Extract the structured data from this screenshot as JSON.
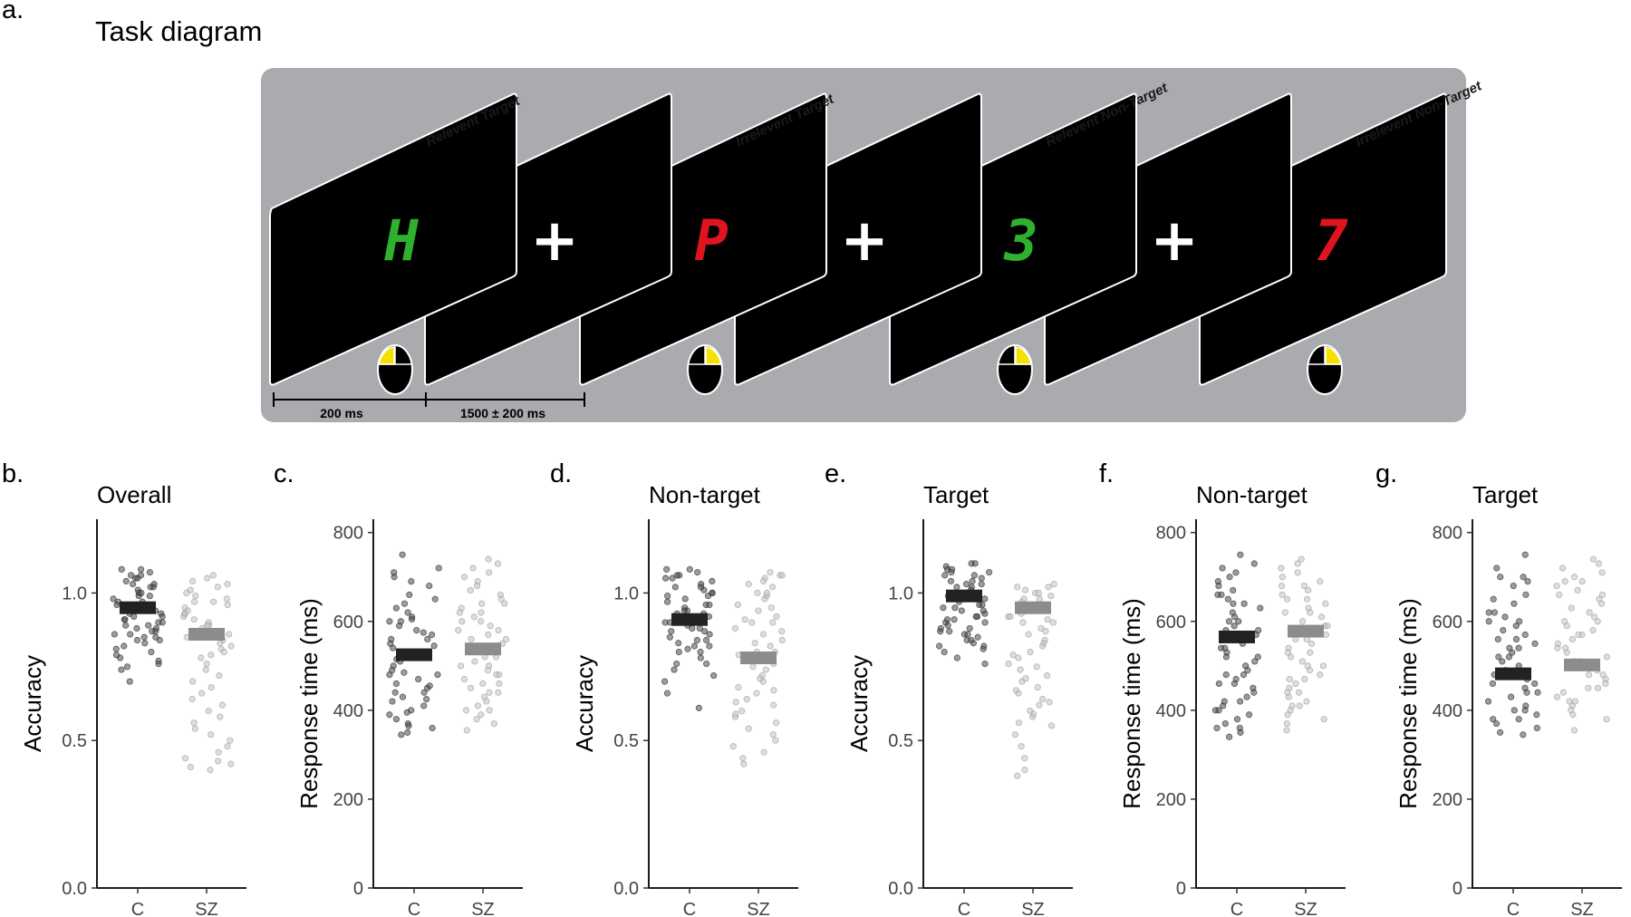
{
  "figure": {
    "panel_a_letter": "a.",
    "panel_a_title": "Task diagram",
    "screens": [
      {
        "kind": "stimulus",
        "label": "Relevent Target",
        "glyph": "H",
        "glyph_color": "#2fb12f",
        "mouse": "left"
      },
      {
        "kind": "fixation",
        "label": "",
        "glyph": "+",
        "glyph_color": "#ffffff",
        "mouse": ""
      },
      {
        "kind": "stimulus",
        "label": "Irrelevent Target",
        "glyph": "P",
        "glyph_color": "#e0141e",
        "mouse": "right"
      },
      {
        "kind": "fixation",
        "label": "",
        "glyph": "+",
        "glyph_color": "#ffffff",
        "mouse": ""
      },
      {
        "kind": "stimulus",
        "label": "Relevent Non-Target",
        "glyph": "3",
        "glyph_color": "#2fb12f",
        "mouse": "right"
      },
      {
        "kind": "fixation",
        "label": "",
        "glyph": "+",
        "glyph_color": "#ffffff",
        "mouse": ""
      },
      {
        "kind": "stimulus",
        "label": "Irrelevent Non-Target",
        "glyph": "7",
        "glyph_color": "#e0141e",
        "mouse": "right"
      }
    ],
    "timing": {
      "stim_label": "200 ms",
      "isi_label": "1500 ± 200 ms"
    },
    "colors": {
      "panel_bg": "#a9abae",
      "screen": "#000000",
      "mouse_button": "#f5e100",
      "control": "#222222",
      "patient": "#8c8c8c",
      "control_points": "#4a4a4a",
      "patient_points": "#bdbdbd"
    }
  },
  "chart_data": [
    {
      "panel": "b.",
      "title": "Overall",
      "type": "scatter",
      "xlabel": "",
      "ylabel": "Accuracy",
      "categories": [
        "C",
        "SZ"
      ],
      "ylim": [
        0.0,
        1.25
      ],
      "yticks": [
        "0.0",
        "0.5",
        "1.0"
      ],
      "ytick_values": [
        0.0,
        0.5,
        1.0
      ],
      "means": [
        0.95,
        0.86
      ],
      "series": [
        {
          "name": "C",
          "values": [
            1.08,
            1.07,
            1.06,
            1.05,
            1.04,
            1.03,
            1.02,
            1.01,
            1.0,
            0.99,
            0.98,
            0.97,
            0.96,
            0.95,
            0.94,
            0.93,
            0.92,
            0.91,
            0.9,
            0.89,
            0.88,
            0.87,
            0.86,
            0.85,
            0.84,
            0.82,
            0.8,
            0.78,
            0.76,
            0.74,
            0.7,
            1.08,
            1.06,
            1.03,
            1.0,
            0.97,
            0.95,
            0.93,
            0.91,
            0.89,
            0.87,
            0.85,
            0.83,
            0.79,
            1.05,
            1.02,
            0.99,
            0.96,
            0.94,
            0.92,
            0.9,
            0.88,
            0.86,
            0.84,
            0.81,
            0.77,
            0.75
          ]
        },
        {
          "name": "SZ",
          "values": [
            1.06,
            1.05,
            1.03,
            1.02,
            1.0,
            0.99,
            0.98,
            0.97,
            0.96,
            0.95,
            0.94,
            0.93,
            0.92,
            0.91,
            0.9,
            0.89,
            0.88,
            0.87,
            0.86,
            0.85,
            0.84,
            0.83,
            0.82,
            0.81,
            0.8,
            0.79,
            0.78,
            0.76,
            0.74,
            0.72,
            0.7,
            0.68,
            0.66,
            0.64,
            0.62,
            0.6,
            0.58,
            0.56,
            0.54,
            0.52,
            0.5,
            0.48,
            0.46,
            0.44,
            0.42,
            0.4,
            0.41,
            0.43,
            1.04,
            1.01,
            0.97,
            0.93,
            0.89,
            0.85
          ]
        }
      ]
    },
    {
      "panel": "c.",
      "title": "",
      "type": "scatter",
      "xlabel": "",
      "ylabel": "Response time (ms)",
      "categories": [
        "C",
        "SZ"
      ],
      "ylim": [
        0,
        830
      ],
      "yticks": [
        "0",
        "200",
        "400",
        "600",
        "800"
      ],
      "ytick_values": [
        0,
        200,
        400,
        600,
        800
      ],
      "means": [
        525,
        538
      ],
      "series": [
        {
          "name": "C",
          "values": [
            750,
            720,
            710,
            690,
            680,
            660,
            640,
            630,
            620,
            610,
            600,
            590,
            580,
            570,
            560,
            550,
            540,
            530,
            520,
            510,
            500,
            490,
            480,
            470,
            460,
            450,
            440,
            430,
            420,
            410,
            400,
            390,
            380,
            370,
            360,
            350,
            345,
            700,
            650,
            605,
            575,
            545,
            515,
            485,
            455,
            425,
            395,
            365,
            600,
            560,
            520,
            480,
            440
          ]
        },
        {
          "name": "SZ",
          "values": [
            740,
            730,
            710,
            690,
            670,
            660,
            650,
            640,
            630,
            620,
            610,
            600,
            590,
            580,
            570,
            560,
            550,
            540,
            530,
            520,
            510,
            500,
            490,
            480,
            470,
            460,
            450,
            440,
            430,
            420,
            410,
            400,
            390,
            380,
            370,
            355,
            720,
            680,
            640,
            600,
            560,
            520,
            480,
            440,
            400,
            700,
            620,
            580,
            540,
            500,
            460
          ]
        }
      ]
    },
    {
      "panel": "d.",
      "title": "Non-target",
      "type": "scatter",
      "xlabel": "",
      "ylabel": "Accuracy",
      "categories": [
        "C",
        "SZ"
      ],
      "ylim": [
        0.0,
        1.25
      ],
      "yticks": [
        "0.0",
        "0.5",
        "1.0"
      ],
      "ytick_values": [
        0.0,
        0.5,
        1.0
      ],
      "means": [
        0.91,
        0.78
      ],
      "series": [
        {
          "name": "C",
          "values": [
            1.08,
            1.07,
            1.06,
            1.05,
            1.04,
            1.03,
            1.02,
            1.01,
            1.0,
            0.99,
            0.98,
            0.97,
            0.96,
            0.95,
            0.94,
            0.93,
            0.92,
            0.91,
            0.9,
            0.89,
            0.88,
            0.87,
            0.86,
            0.85,
            0.84,
            0.83,
            0.82,
            0.81,
            0.8,
            0.78,
            0.76,
            0.74,
            0.72,
            0.7,
            0.66,
            0.61,
            1.08,
            1.05,
            1.02,
            0.99,
            0.96,
            0.93,
            0.9,
            0.87,
            0.84,
            0.8,
            1.06,
            1.0,
            0.94,
            0.88,
            0.82,
            0.76
          ]
        },
        {
          "name": "SZ",
          "values": [
            1.07,
            1.06,
            1.05,
            1.04,
            1.02,
            1.0,
            0.98,
            0.96,
            0.94,
            0.92,
            0.9,
            0.88,
            0.86,
            0.84,
            0.82,
            0.8,
            0.78,
            0.76,
            0.74,
            0.72,
            0.7,
            0.68,
            0.66,
            0.64,
            0.62,
            0.6,
            0.58,
            0.56,
            0.54,
            0.52,
            0.5,
            0.48,
            0.46,
            0.44,
            0.42,
            1.06,
            1.03,
            0.99,
            0.95,
            0.91,
            0.87,
            0.83,
            0.79,
            0.75,
            0.71,
            0.67,
            0.63,
            0.59,
            1.0,
            0.9,
            0.8
          ]
        }
      ]
    },
    {
      "panel": "e.",
      "title": "Target",
      "type": "scatter",
      "xlabel": "",
      "ylabel": "Accuracy",
      "categories": [
        "C",
        "SZ"
      ],
      "ylim": [
        0.0,
        1.25
      ],
      "yticks": [
        "0.0",
        "0.5",
        "1.0"
      ],
      "ytick_values": [
        0.0,
        0.5,
        1.0
      ],
      "means": [
        0.99,
        0.95
      ],
      "series": [
        {
          "name": "C",
          "values": [
            1.1,
            1.09,
            1.08,
            1.07,
            1.06,
            1.05,
            1.04,
            1.03,
            1.02,
            1.01,
            1.0,
            0.99,
            0.98,
            0.97,
            0.96,
            0.95,
            0.94,
            0.93,
            0.92,
            0.91,
            0.9,
            0.89,
            0.88,
            0.87,
            0.86,
            0.85,
            0.84,
            0.83,
            0.82,
            0.81,
            0.8,
            0.78,
            0.76,
            1.1,
            1.08,
            1.06,
            1.04,
            1.02,
            1.0,
            0.98,
            0.96,
            0.94,
            0.92,
            0.9,
            0.88,
            0.86,
            0.84,
            0.82,
            1.07,
            1.03,
            0.99,
            0.95,
            0.91,
            0.87
          ]
        },
        {
          "name": "SZ",
          "values": [
            1.03,
            1.02,
            1.01,
            1.0,
            0.99,
            0.98,
            0.97,
            0.96,
            0.95,
            0.94,
            0.93,
            0.92,
            0.91,
            0.9,
            0.88,
            0.86,
            0.84,
            0.82,
            0.8,
            0.78,
            0.76,
            0.74,
            0.72,
            0.7,
            0.68,
            0.66,
            0.64,
            0.62,
            0.6,
            0.58,
            0.56,
            0.52,
            0.48,
            0.44,
            0.4,
            0.38,
            1.02,
            1.0,
            0.98,
            0.96,
            0.94,
            0.92,
            0.9,
            0.87,
            0.83,
            0.79,
            0.75,
            0.71,
            0.67,
            0.63,
            0.59,
            0.55
          ]
        }
      ]
    },
    {
      "panel": "f.",
      "title": "Non-target",
      "type": "scatter",
      "xlabel": "",
      "ylabel": "Response time (ms)",
      "categories": [
        "C",
        "SZ"
      ],
      "ylim": [
        0,
        830
      ],
      "yticks": [
        "0",
        "200",
        "400",
        "600",
        "800"
      ],
      "ytick_values": [
        0,
        200,
        400,
        600,
        800
      ],
      "means": [
        565,
        578
      ],
      "series": [
        {
          "name": "C",
          "values": [
            750,
            730,
            710,
            700,
            690,
            680,
            670,
            660,
            650,
            640,
            630,
            620,
            610,
            600,
            590,
            580,
            570,
            560,
            550,
            540,
            530,
            520,
            510,
            500,
            490,
            480,
            470,
            460,
            450,
            440,
            430,
            420,
            410,
            400,
            390,
            380,
            370,
            360,
            350,
            340,
            720,
            660,
            600,
            540,
            480,
            420,
            360,
            640,
            580,
            520,
            460,
            400
          ]
        },
        {
          "name": "SZ",
          "values": [
            740,
            730,
            720,
            700,
            690,
            680,
            670,
            660,
            650,
            640,
            630,
            620,
            610,
            600,
            590,
            580,
            570,
            560,
            550,
            540,
            530,
            520,
            510,
            500,
            490,
            480,
            470,
            460,
            450,
            440,
            430,
            420,
            410,
            400,
            390,
            380,
            370,
            355,
            710,
            650,
            590,
            530,
            470,
            410,
            680,
            620,
            560,
            500,
            440
          ]
        }
      ]
    },
    {
      "panel": "g.",
      "title": "Target",
      "type": "scatter",
      "xlabel": "",
      "ylabel": "Response time (ms)",
      "categories": [
        "C",
        "SZ"
      ],
      "ylim": [
        0,
        830
      ],
      "yticks": [
        "0",
        "200",
        "400",
        "600",
        "800"
      ],
      "ytick_values": [
        0,
        200,
        400,
        600,
        800
      ],
      "means": [
        482,
        502
      ],
      "series": [
        {
          "name": "C",
          "values": [
            750,
            720,
            700,
            690,
            680,
            660,
            640,
            620,
            610,
            600,
            590,
            580,
            570,
            560,
            550,
            540,
            530,
            520,
            510,
            500,
            490,
            480,
            470,
            460,
            450,
            440,
            430,
            420,
            410,
            400,
            390,
            380,
            370,
            360,
            350,
            345,
            700,
            650,
            600,
            560,
            520,
            480,
            440,
            400,
            620,
            540,
            460,
            380
          ]
        },
        {
          "name": "SZ",
          "values": [
            740,
            730,
            710,
            700,
            690,
            680,
            670,
            660,
            650,
            640,
            630,
            620,
            610,
            600,
            590,
            580,
            570,
            560,
            550,
            540,
            530,
            520,
            510,
            500,
            490,
            480,
            470,
            460,
            450,
            440,
            430,
            420,
            410,
            400,
            390,
            380,
            355,
            720,
            660,
            600,
            540,
            480,
            420,
            690,
            570,
            510,
            450
          ]
        }
      ]
    }
  ]
}
